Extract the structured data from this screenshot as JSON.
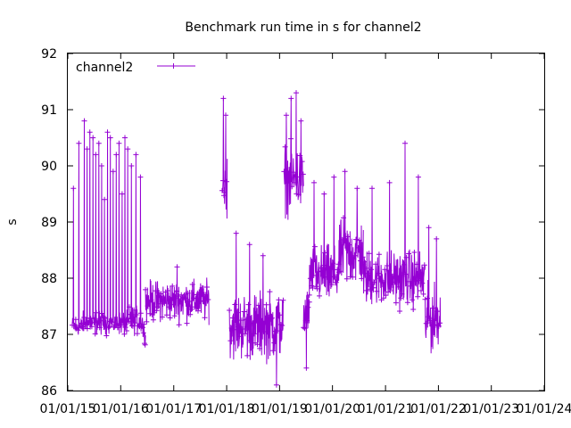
{
  "chart_data": {
    "type": "line",
    "title": "Benchmark run time in s for channel2",
    "ylabel": "s",
    "xlabel": "",
    "ylim": [
      86,
      92
    ],
    "yticks": [
      86,
      87,
      88,
      89,
      90,
      91,
      92
    ],
    "x_range": [
      "2015-01-01",
      "2024-01-01"
    ],
    "xticks": [
      {
        "date": "2015-01-01",
        "label": "01/01/15"
      },
      {
        "date": "2016-01-01",
        "label": "01/01/16"
      },
      {
        "date": "2017-01-01",
        "label": "01/01/17"
      },
      {
        "date": "2018-01-01",
        "label": "01/01/18"
      },
      {
        "date": "2019-01-01",
        "label": "01/01/19"
      },
      {
        "date": "2020-01-01",
        "label": "01/01/20"
      },
      {
        "date": "2021-01-01",
        "label": "01/01/21"
      },
      {
        "date": "2022-01-01",
        "label": "01/01/22"
      },
      {
        "date": "2023-01-01",
        "label": "01/01/23"
      },
      {
        "date": "2024-01-01",
        "label": "01/01/24"
      }
    ],
    "grid": false,
    "legend": "top-left",
    "series": [
      {
        "name": "channel2",
        "color": "#9400d3",
        "marker": "plus",
        "segments": [
          {
            "start": "2015-02-01",
            "end": "2015-04-15",
            "base": [
              86.9,
              87.4
            ],
            "spikes": [
              89.6,
              87.1,
              90.4,
              87.2
            ]
          },
          {
            "start": "2015-04-15",
            "end": "2016-03-01",
            "base": [
              86.9,
              87.5
            ],
            "spikes": [
              90.8,
              90.3,
              90.6,
              90.5,
              90.2,
              90.4,
              90.0,
              89.4,
              90.6,
              90.5,
              89.9,
              90.2,
              90.4,
              89.5,
              90.5,
              90.3
            ]
          },
          {
            "start": "2016-03-01",
            "end": "2016-06-01",
            "base": [
              86.9,
              87.6
            ],
            "spikes": [
              90.0,
              90.2,
              89.8
            ]
          },
          {
            "start": "2016-06-01",
            "end": "2016-06-20",
            "base": [
              86.8,
              87.3
            ],
            "spikes": []
          },
          {
            "start": "2016-06-20",
            "end": "2017-09-01",
            "base": [
              87.1,
              88.1
            ],
            "spikes": [
              88.2
            ]
          },
          {
            "start": "2017-12-01",
            "end": "2018-01-05",
            "base": [
              88.8,
              90.6
            ],
            "spikes": [
              91.2,
              90.9
            ]
          },
          {
            "start": "2018-01-20",
            "end": "2019-01-28",
            "base": [
              86.3,
              88.0
            ],
            "spikes": [
              88.8,
              88.6,
              88.4,
              86.1
            ]
          },
          {
            "start": "2019-02-01",
            "end": "2019-06-15",
            "base": [
              88.9,
              90.6
            ],
            "spikes": [
              90.9,
              91.2,
              91.3,
              90.8
            ]
          },
          {
            "start": "2019-06-15",
            "end": "2019-07-25",
            "base": [
              86.5,
              88.1
            ],
            "spikes": [
              86.4
            ]
          },
          {
            "start": "2019-07-25",
            "end": "2020-02-15",
            "base": [
              87.3,
              88.8
            ],
            "spikes": [
              89.7,
              89.5,
              89.8
            ]
          },
          {
            "start": "2020-02-15",
            "end": "2020-08-01",
            "base": [
              87.6,
              89.3
            ],
            "spikes": [
              89.9,
              89.6
            ]
          },
          {
            "start": "2020-08-01",
            "end": "2021-04-01",
            "base": [
              87.3,
              88.7
            ],
            "spikes": [
              89.6,
              89.7
            ]
          },
          {
            "start": "2021-04-01",
            "end": "2021-10-01",
            "base": [
              87.3,
              88.7
            ],
            "spikes": [
              90.4,
              89.8
            ]
          },
          {
            "start": "2021-10-01",
            "end": "2022-01-15",
            "base": [
              86.4,
              88.1
            ],
            "spikes": [
              88.9,
              88.7
            ]
          }
        ]
      }
    ]
  }
}
